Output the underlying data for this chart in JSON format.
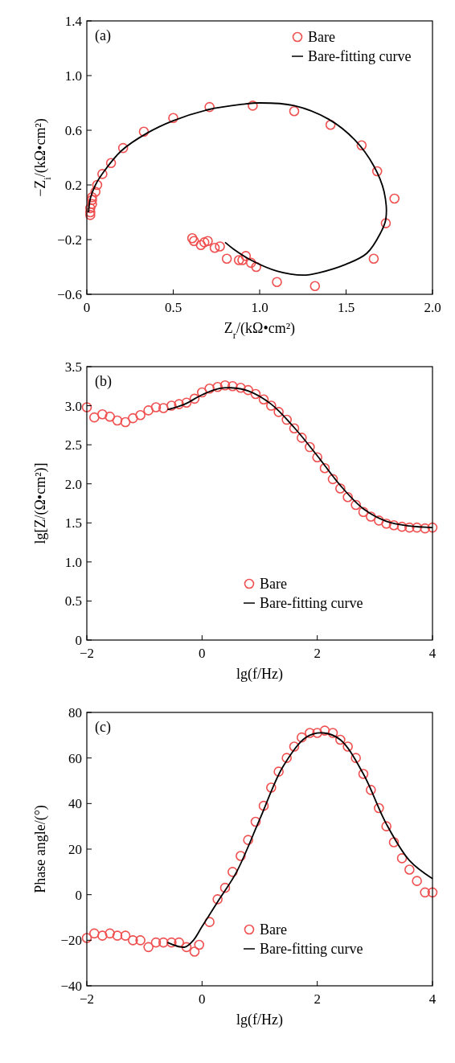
{
  "chart_data": [
    {
      "type": "scatter",
      "title": "(a)",
      "xlabel": "Z$_{r}$/(kΩ•cm²)",
      "ylabel": "−Z$_{i}$/(kΩ•cm²)",
      "xlim": [
        0,
        2.0
      ],
      "ylim": [
        -0.6,
        1.4
      ],
      "xticks": [
        0,
        0.5,
        {
          "value": 1,
          "label": "1.0"
        },
        1.5,
        {
          "value": 2,
          "label": "2.0"
        }
      ],
      "yticks": [
        {
          "value": -0.6,
          "label": "−0.6"
        },
        {
          "value": -0.2,
          "label": "−0.2"
        },
        0.2,
        0.6,
        {
          "value": 1,
          "label": "1.0"
        },
        1.4
      ],
      "legend": "top right",
      "grid": false,
      "series": [
        {
          "name": "Bare",
          "type": "scatter",
          "marker": "circle",
          "color": "#f05050",
          "x": [
            0.02,
            0.02,
            0.02,
            0.03,
            0.03,
            0.03,
            0.05,
            0.06,
            0.09,
            0.14,
            0.21,
            0.33,
            0.5,
            0.71,
            0.96,
            1.2,
            1.41,
            1.59,
            1.68,
            1.78,
            1.73,
            1.66,
            1.32,
            1.1,
            0.98,
            0.95,
            0.92,
            0.9,
            0.88,
            0.81,
            0.77,
            0.74,
            0.7,
            0.68,
            0.66,
            0.62,
            0.61
          ],
          "values": [
            -0.02,
            0.0,
            0.03,
            0.06,
            0.09,
            0.11,
            0.15,
            0.2,
            0.28,
            0.36,
            0.47,
            0.59,
            0.69,
            0.77,
            0.78,
            0.74,
            0.64,
            0.49,
            0.3,
            0.1,
            -0.08,
            -0.34,
            -0.54,
            -0.51,
            -0.4,
            -0.37,
            -0.32,
            -0.35,
            -0.35,
            -0.34,
            -0.25,
            -0.26,
            -0.21,
            -0.22,
            -0.24,
            -0.21,
            -0.19
          ]
        },
        {
          "name": "Bare-fitting curve",
          "type": "line",
          "marker": "none",
          "color": "#000000",
          "x": [
            0.01,
            0.02,
            0.05,
            0.1,
            0.2,
            0.35,
            0.5,
            0.7,
            0.9,
            1.0,
            1.2,
            1.4,
            1.55,
            1.66,
            1.72,
            1.73,
            1.7,
            1.62,
            1.5,
            1.35,
            1.25,
            1.1,
            0.95,
            0.85,
            0.8
          ],
          "values": [
            0.0,
            0.1,
            0.2,
            0.3,
            0.45,
            0.58,
            0.67,
            0.75,
            0.79,
            0.8,
            0.78,
            0.68,
            0.53,
            0.34,
            0.15,
            -0.05,
            -0.15,
            -0.3,
            -0.38,
            -0.44,
            -0.46,
            -0.43,
            -0.35,
            -0.27,
            -0.22
          ]
        }
      ]
    },
    {
      "type": "scatter",
      "title": "(b)",
      "xlabel": "lg(f/Hz)",
      "ylabel": "lg[Z/(Ω•cm²)]",
      "xlim": [
        -2,
        4
      ],
      "ylim": [
        0,
        3.5
      ],
      "xticks": [
        {
          "value": -2,
          "label": "−2"
        },
        0,
        2,
        4
      ],
      "yticks": [
        0,
        0.5,
        {
          "value": 1,
          "label": "1.0"
        },
        1.5,
        {
          "value": 2,
          "label": "2.0"
        },
        2.5,
        {
          "value": 3,
          "label": "3.0"
        },
        3.5
      ],
      "legend": "bottom",
      "grid": false,
      "series": [
        {
          "name": "Bare",
          "type": "scatter",
          "marker": "circle",
          "color": "#f05050",
          "x": [
            -2,
            -1.87,
            -1.73,
            -1.6,
            -1.47,
            -1.33,
            -1.2,
            -1.07,
            -0.93,
            -0.8,
            -0.67,
            -0.53,
            -0.4,
            -0.27,
            -0.13,
            0,
            0.13,
            0.27,
            0.4,
            0.53,
            0.67,
            0.8,
            0.93,
            1.07,
            1.2,
            1.33,
            1.47,
            1.6,
            1.73,
            1.87,
            2.0,
            2.13,
            2.27,
            2.4,
            2.53,
            2.67,
            2.8,
            2.93,
            3.07,
            3.2,
            3.33,
            3.47,
            3.6,
            3.73,
            3.87,
            4.0
          ],
          "values": [
            2.98,
            2.85,
            2.89,
            2.86,
            2.81,
            2.79,
            2.84,
            2.88,
            2.94,
            2.98,
            2.97,
            3.0,
            3.02,
            3.04,
            3.09,
            3.17,
            3.22,
            3.24,
            3.26,
            3.25,
            3.23,
            3.2,
            3.15,
            3.08,
            3.0,
            2.92,
            2.82,
            2.71,
            2.59,
            2.47,
            2.34,
            2.2,
            2.06,
            1.94,
            1.83,
            1.73,
            1.64,
            1.58,
            1.53,
            1.49,
            1.47,
            1.45,
            1.44,
            1.44,
            1.43,
            1.44
          ]
        },
        {
          "name": "Bare-fitting curve",
          "type": "line",
          "marker": "none",
          "color": "#000000",
          "x": [
            -0.6,
            -0.3,
            0,
            0.3,
            0.5,
            0.8,
            1.2,
            1.6,
            2.0,
            2.4,
            2.8,
            3.2,
            3.6,
            4.0
          ],
          "values": [
            2.95,
            3.02,
            3.14,
            3.22,
            3.23,
            3.19,
            3.02,
            2.72,
            2.36,
            1.98,
            1.68,
            1.52,
            1.46,
            1.44
          ]
        }
      ]
    },
    {
      "type": "scatter",
      "title": "(c)",
      "xlabel": "lg(f/Hz)",
      "ylabel": "Phase angle/(°)",
      "xlim": [
        -2,
        4
      ],
      "ylim": [
        -40,
        80
      ],
      "xticks": [
        {
          "value": -2,
          "label": "−2"
        },
        0,
        2,
        4
      ],
      "yticks": [
        {
          "value": -40,
          "label": "−40"
        },
        {
          "value": -20,
          "label": "−20"
        },
        0,
        20,
        40,
        60,
        80
      ],
      "legend": "bottom",
      "grid": false,
      "series": [
        {
          "name": "Bare",
          "type": "scatter",
          "marker": "circle",
          "color": "#f05050",
          "x": [
            -2,
            -1.87,
            -1.73,
            -1.6,
            -1.47,
            -1.33,
            -1.2,
            -1.07,
            -0.93,
            -0.8,
            -0.67,
            -0.53,
            -0.4,
            -0.27,
            -0.13,
            -0.05,
            0.13,
            0.27,
            0.4,
            0.53,
            0.67,
            0.8,
            0.93,
            1.07,
            1.2,
            1.33,
            1.47,
            1.6,
            1.73,
            1.87,
            2.0,
            2.13,
            2.27,
            2.4,
            2.53,
            2.67,
            2.8,
            2.93,
            3.07,
            3.2,
            3.33,
            3.47,
            3.6,
            3.73,
            3.87,
            4.0
          ],
          "values": [
            -19,
            -17,
            -18,
            -17,
            -18,
            -18,
            -20,
            -20,
            -23,
            -21,
            -21,
            -21,
            -21,
            -23,
            -25,
            -22,
            -12,
            -2,
            3,
            10,
            17,
            24,
            32,
            39,
            47,
            54,
            60,
            65,
            69,
            71,
            71,
            72,
            71,
            68,
            65,
            60,
            53,
            46,
            38,
            30,
            23,
            16,
            11,
            6,
            1,
            1
          ]
        },
        {
          "name": "Bare-fitting curve",
          "type": "line",
          "marker": "none",
          "color": "#000000",
          "x": [
            -0.6,
            -0.3,
            -0.15,
            0,
            0.3,
            0.6,
            1.0,
            1.4,
            1.8,
            2.1,
            2.4,
            2.8,
            3.2,
            3.6,
            4.0
          ],
          "values": [
            -21,
            -23,
            -20,
            -14,
            -2,
            10,
            33,
            56,
            69,
            71,
            68,
            53,
            31,
            15,
            7
          ]
        }
      ]
    }
  ]
}
